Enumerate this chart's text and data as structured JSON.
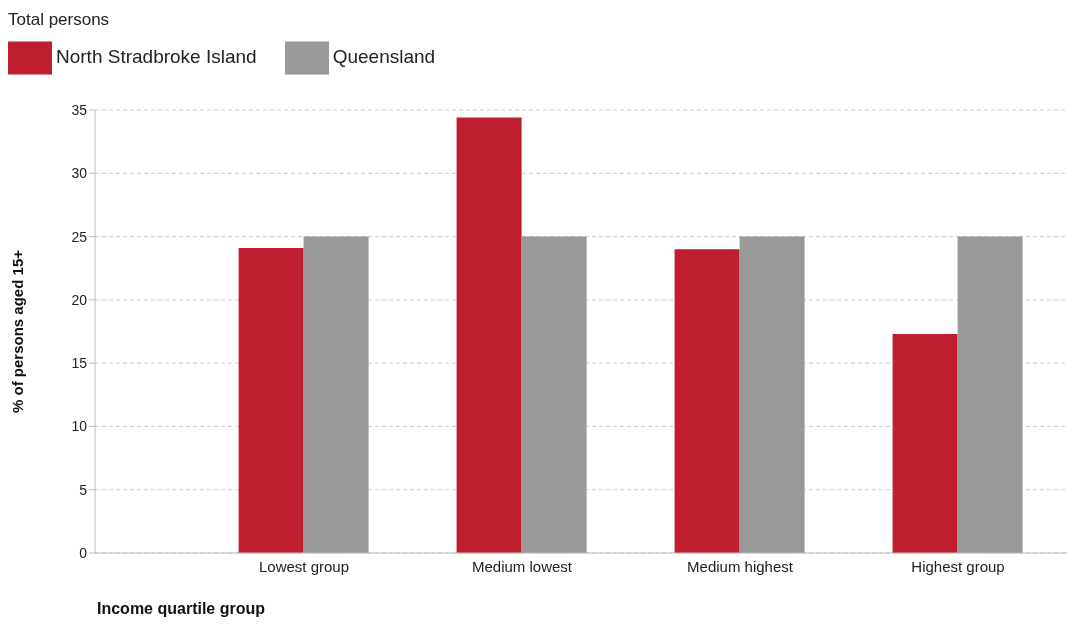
{
  "chart_data": {
    "type": "bar",
    "title": "Total persons",
    "xlabel": "Income quartile group",
    "ylabel": "% of persons aged 15+",
    "categories": [
      "Lowest group",
      "Medium lowest",
      "Medium highest",
      "Highest group"
    ],
    "series": [
      {
        "name": "North Stradbroke Island",
        "color": "#be1e2d",
        "values": [
          24.1,
          34.4,
          24.0,
          17.3
        ]
      },
      {
        "name": "Queensland",
        "color": "#999999",
        "values": [
          25.0,
          25.0,
          25.0,
          25.0
        ]
      }
    ],
    "ylim": [
      0,
      35
    ],
    "yticks": [
      0,
      5,
      10,
      15,
      20,
      25,
      30,
      35
    ],
    "grid": "y",
    "legend": "top left"
  }
}
